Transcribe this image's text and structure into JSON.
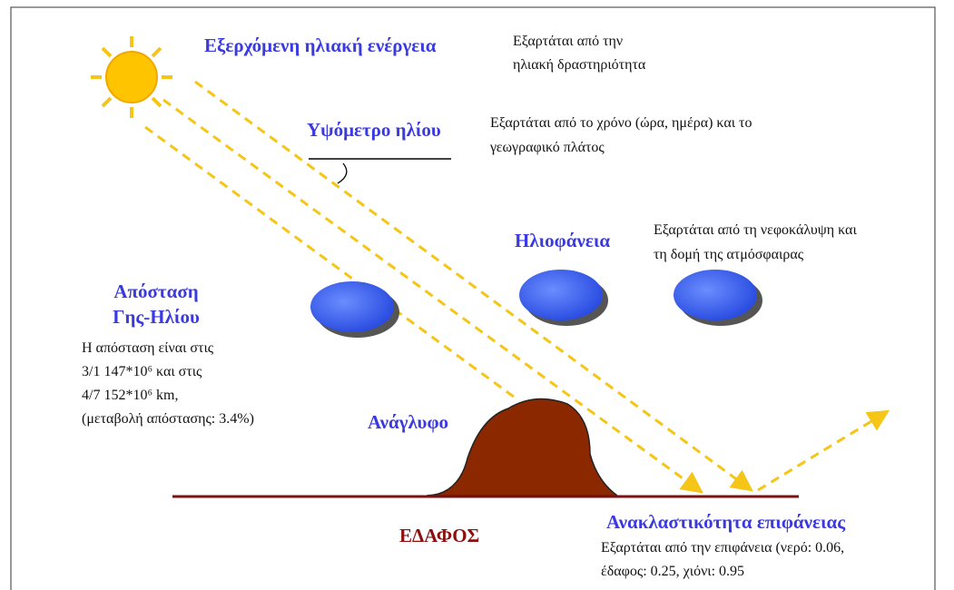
{
  "factors": [
    {
      "title": [
        "Εξερχόμενη ηλιακή ενέργεια"
      ],
      "note": [
        "Εξαρτάται από την",
        "ηλιακή δραστηριότητα"
      ]
    },
    {
      "title": [
        "Υψόμετρο ηλίου"
      ],
      "note": [
        "Εξαρτάται από το χρόνο (ώρα, ημέρα) και το",
        "γεωγραφικό πλάτος"
      ]
    },
    {
      "title": [
        "Ηλιοφάνεια"
      ],
      "note": [
        "Εξαρτάται από τη νεφοκάλυψη και",
        "τη δομή της ατμόσφαιρας"
      ]
    },
    {
      "title": [
        "Απόσταση",
        "Γης-Ηλίου"
      ],
      "note": [
        "Η απόσταση είναι στις",
        "3/1 147*10⁶ και στις",
        "4/7 152*10⁶ km,",
        "(μεταβολή απόστασης: 3.4%)"
      ]
    },
    {
      "title": [
        "Ανάγλυφο"
      ],
      "note": []
    },
    {
      "title": [
        "Ανακλαστικότητα επιφάνειας"
      ],
      "note": [
        "Εξαρτάται από την επιφάνεια (νερό: 0.06,",
        "έδαφος: 0.25, χιόνι: 0.95"
      ]
    }
  ],
  "ground": "ΕΔΑΦΟΣ"
}
